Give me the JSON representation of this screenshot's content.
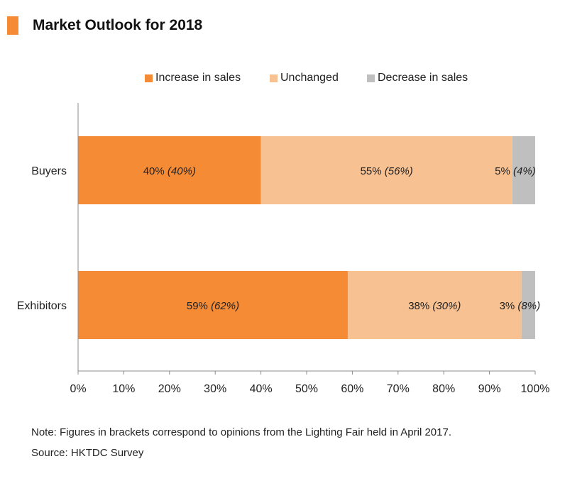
{
  "title": "Market Outlook for 2018",
  "colors": {
    "accent": "#f58b35",
    "increase": "#f58b35",
    "unchanged": "#f8c192",
    "decrease": "#bfbfbf"
  },
  "legend": [
    {
      "label": "Increase in sales",
      "color": "#f58b35"
    },
    {
      "label": "Unchanged",
      "color": "#f8c192"
    },
    {
      "label": "Decrease in sales",
      "color": "#bfbfbf"
    }
  ],
  "chart_data": {
    "type": "bar",
    "orientation": "horizontal",
    "stacked": true,
    "categories": [
      "Buyers",
      "Exhibitors"
    ],
    "series": [
      {
        "name": "Increase in sales",
        "values": [
          40,
          59
        ],
        "labels": [
          [
            "40%",
            "(40%)"
          ],
          [
            "59%",
            "(62%)"
          ]
        ]
      },
      {
        "name": "Unchanged",
        "values": [
          55,
          38
        ],
        "labels": [
          [
            "55%",
            "(56%)"
          ],
          [
            "38%",
            "(30%)"
          ]
        ]
      },
      {
        "name": "Decrease in sales",
        "values": [
          5,
          3
        ],
        "labels": [
          [
            "5%",
            "(4%)"
          ],
          [
            "3%",
            "(8%)"
          ]
        ]
      }
    ],
    "xlim": [
      0,
      100
    ],
    "xticks": [
      "0%",
      "10%",
      "20%",
      "30%",
      "40%",
      "50%",
      "60%",
      "70%",
      "80%",
      "90%",
      "100%"
    ],
    "legend_position": "top",
    "grid": false
  },
  "notes": {
    "note": "Note: Figures in brackets correspond to opinions from the Lighting Fair held in April 2017.",
    "source": "Source: HKTDC Survey"
  }
}
